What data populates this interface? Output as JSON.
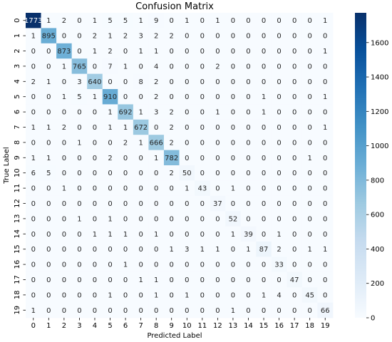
{
  "chart_data": {
    "type": "heatmap",
    "title": "Confusion Matrix",
    "xlabel": "Predicted Label",
    "ylabel": "True Label",
    "x_categories": [
      "0",
      "1",
      "2",
      "3",
      "4",
      "5",
      "6",
      "7",
      "8",
      "9",
      "10",
      "11",
      "12",
      "13",
      "14",
      "15",
      "16",
      "17",
      "18",
      "19"
    ],
    "y_categories": [
      "0",
      "1",
      "2",
      "3",
      "4",
      "5",
      "6",
      "7",
      "8",
      "9",
      "10",
      "11",
      "12",
      "13",
      "14",
      "15",
      "16",
      "17",
      "18",
      "19"
    ],
    "matrix": [
      [
        1773,
        1,
        2,
        0,
        1,
        5,
        5,
        1,
        9,
        0,
        1,
        0,
        1,
        0,
        0,
        0,
        0,
        0,
        0,
        1
      ],
      [
        1,
        895,
        0,
        0,
        2,
        1,
        2,
        3,
        2,
        2,
        0,
        0,
        0,
        0,
        0,
        0,
        0,
        0,
        0,
        0
      ],
      [
        0,
        0,
        873,
        0,
        1,
        2,
        0,
        1,
        1,
        0,
        0,
        0,
        0,
        0,
        0,
        0,
        0,
        0,
        0,
        1
      ],
      [
        0,
        0,
        1,
        765,
        0,
        7,
        1,
        0,
        4,
        0,
        0,
        0,
        2,
        0,
        0,
        0,
        0,
        0,
        0,
        0
      ],
      [
        2,
        1,
        0,
        3,
        640,
        0,
        0,
        8,
        2,
        0,
        0,
        0,
        0,
        0,
        0,
        0,
        0,
        0,
        0,
        0
      ],
      [
        0,
        0,
        1,
        5,
        1,
        910,
        0,
        0,
        2,
        0,
        0,
        0,
        0,
        0,
        0,
        1,
        0,
        0,
        0,
        1
      ],
      [
        0,
        0,
        0,
        0,
        0,
        1,
        692,
        1,
        3,
        2,
        0,
        0,
        1,
        0,
        0,
        1,
        0,
        0,
        0,
        0
      ],
      [
        1,
        1,
        2,
        0,
        0,
        1,
        1,
        672,
        0,
        2,
        0,
        0,
        0,
        0,
        0,
        0,
        0,
        0,
        0,
        1
      ],
      [
        0,
        0,
        0,
        1,
        0,
        0,
        2,
        1,
        666,
        2,
        0,
        0,
        0,
        0,
        0,
        0,
        0,
        0,
        0,
        0
      ],
      [
        1,
        1,
        0,
        0,
        0,
        2,
        0,
        0,
        1,
        782,
        0,
        0,
        0,
        0,
        0,
        0,
        0,
        0,
        1,
        0
      ],
      [
        6,
        5,
        0,
        0,
        0,
        0,
        0,
        0,
        0,
        2,
        50,
        0,
        0,
        0,
        0,
        0,
        0,
        0,
        0,
        0
      ],
      [
        0,
        0,
        1,
        0,
        0,
        0,
        0,
        0,
        0,
        0,
        1,
        43,
        0,
        1,
        0,
        0,
        0,
        0,
        0,
        0
      ],
      [
        0,
        0,
        0,
        0,
        0,
        0,
        0,
        0,
        0,
        0,
        0,
        0,
        37,
        0,
        0,
        0,
        0,
        0,
        0,
        0
      ],
      [
        0,
        0,
        0,
        1,
        0,
        1,
        0,
        0,
        0,
        0,
        0,
        0,
        0,
        52,
        0,
        0,
        0,
        0,
        0,
        0
      ],
      [
        0,
        0,
        0,
        0,
        1,
        1,
        1,
        0,
        1,
        0,
        0,
        0,
        0,
        1,
        39,
        0,
        1,
        0,
        0,
        0
      ],
      [
        0,
        0,
        0,
        0,
        0,
        0,
        0,
        0,
        0,
        1,
        3,
        1,
        1,
        0,
        1,
        87,
        2,
        0,
        1,
        1
      ],
      [
        0,
        0,
        0,
        0,
        0,
        0,
        1,
        0,
        0,
        0,
        0,
        0,
        0,
        0,
        0,
        0,
        33,
        0,
        0,
        0
      ],
      [
        0,
        0,
        0,
        0,
        0,
        0,
        0,
        1,
        1,
        0,
        0,
        0,
        0,
        0,
        0,
        0,
        0,
        47,
        0,
        0
      ],
      [
        0,
        0,
        0,
        0,
        0,
        1,
        0,
        0,
        1,
        0,
        1,
        0,
        0,
        0,
        0,
        1,
        4,
        0,
        45,
        0
      ],
      [
        1,
        0,
        0,
        0,
        0,
        0,
        0,
        0,
        0,
        0,
        0,
        0,
        0,
        1,
        0,
        0,
        0,
        0,
        0,
        66
      ]
    ],
    "colorbar": {
      "colormap": "Blues",
      "range": [
        0,
        1773
      ],
      "ticks": [
        0,
        200,
        400,
        600,
        800,
        1000,
        1200,
        1400,
        1600
      ]
    },
    "grid": false
  }
}
